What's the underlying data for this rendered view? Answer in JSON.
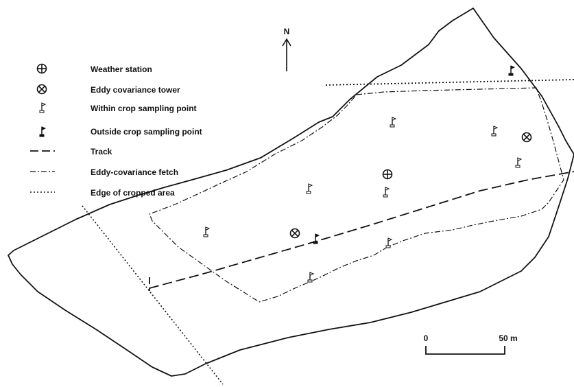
{
  "north": {
    "label": "N"
  },
  "legend": {
    "items": [
      {
        "symbol": "weather-station-icon",
        "label": "Weather station"
      },
      {
        "symbol": "eddy-tower-icon",
        "label": "Eddy covariance tower"
      },
      {
        "symbol": "within-crop-flag-icon",
        "label": "Within crop sampling point"
      },
      {
        "symbol": "outside-crop-flag-icon",
        "label": "Outside crop sampling point"
      },
      {
        "symbol": "track-line",
        "label": "Track"
      },
      {
        "symbol": "fetch-line",
        "label": "Eddy-covariance fetch"
      },
      {
        "symbol": "crop-edge-line",
        "label": "Edge of cropped area"
      }
    ]
  },
  "scale_bar": {
    "start_label": "0",
    "end_label": "50 m"
  },
  "colors": {
    "ink": "#111111",
    "background": "#ffffff"
  }
}
